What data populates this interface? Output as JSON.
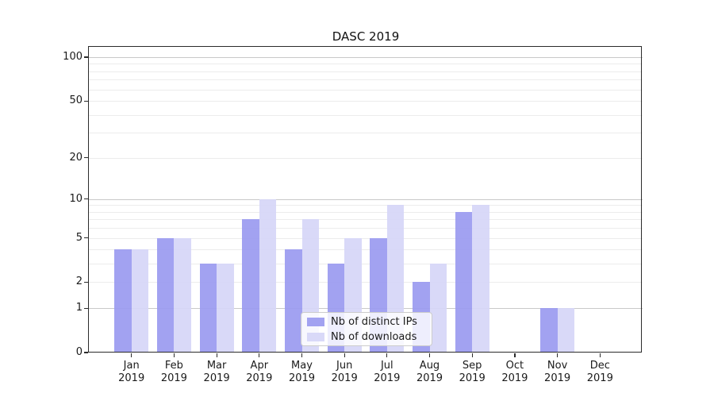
{
  "chart_data": {
    "type": "bar",
    "title": "DASC 2019",
    "categories": [
      "Jan 2019",
      "Feb 2019",
      "Mar 2019",
      "Apr 2019",
      "May 2019",
      "Jun 2019",
      "Jul 2019",
      "Aug 2019",
      "Sep 2019",
      "Oct 2019",
      "Nov 2019",
      "Dec 2019"
    ],
    "series": [
      {
        "name": "Nb of distinct IPs",
        "color": "#9b9bf0",
        "values": [
          4,
          5,
          3,
          7,
          4,
          3,
          5,
          2,
          8,
          0,
          1,
          0
        ]
      },
      {
        "name": "Nb of downloads",
        "color": "#d6d6f8",
        "values": [
          4,
          5,
          3,
          10,
          7,
          5,
          9,
          3,
          9,
          0,
          1,
          0
        ]
      }
    ],
    "xlabel": "",
    "ylabel": "",
    "y_scale": "log10(1+v)",
    "ylim": [
      0,
      100
    ],
    "y_ticks": [
      0,
      1,
      2,
      5,
      10,
      20,
      50,
      100
    ],
    "y_major_gridlines": [
      1,
      10,
      100
    ],
    "y_minor_gridlines": [
      2,
      3,
      4,
      5,
      6,
      7,
      8,
      9,
      20,
      30,
      40,
      50,
      60,
      70,
      80,
      90
    ],
    "grid": "on",
    "legend_position": "lower center",
    "colors": {
      "grid_minor": "#ececec",
      "grid_major": "#c9c9c9",
      "spine": "#2b2b2b",
      "text": "#1a1a1a"
    }
  }
}
